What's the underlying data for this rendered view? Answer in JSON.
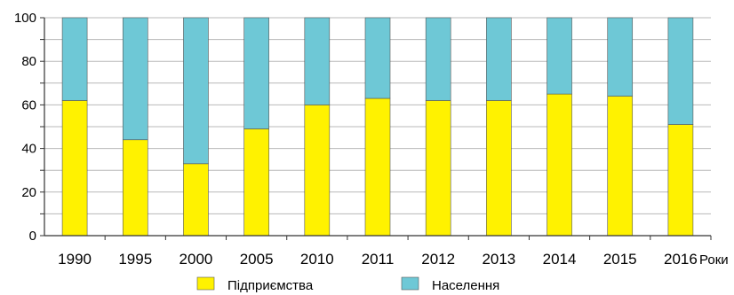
{
  "chart_data": {
    "type": "bar",
    "stacked": true,
    "categories": [
      "1990",
      "1995",
      "2000",
      "2005",
      "2010",
      "2011",
      "2012",
      "2013",
      "2014",
      "2015",
      "2016"
    ],
    "series": [
      {
        "name": "Підприємства",
        "color": "#fff200",
        "values": [
          62,
          44,
          33,
          49,
          60,
          63,
          62,
          62,
          65,
          64,
          51
        ]
      },
      {
        "name": "Населення",
        "color": "#6ec8d6",
        "values": [
          38,
          56,
          67,
          51,
          40,
          37,
          38,
          38,
          35,
          36,
          49
        ]
      }
    ],
    "xlabel": "Роки",
    "ylabel": "",
    "ylim": [
      0,
      100
    ],
    "yticks": [
      "0",
      "20",
      "40",
      "60",
      "80",
      "100"
    ],
    "grid": true,
    "legend_position": "bottom"
  }
}
